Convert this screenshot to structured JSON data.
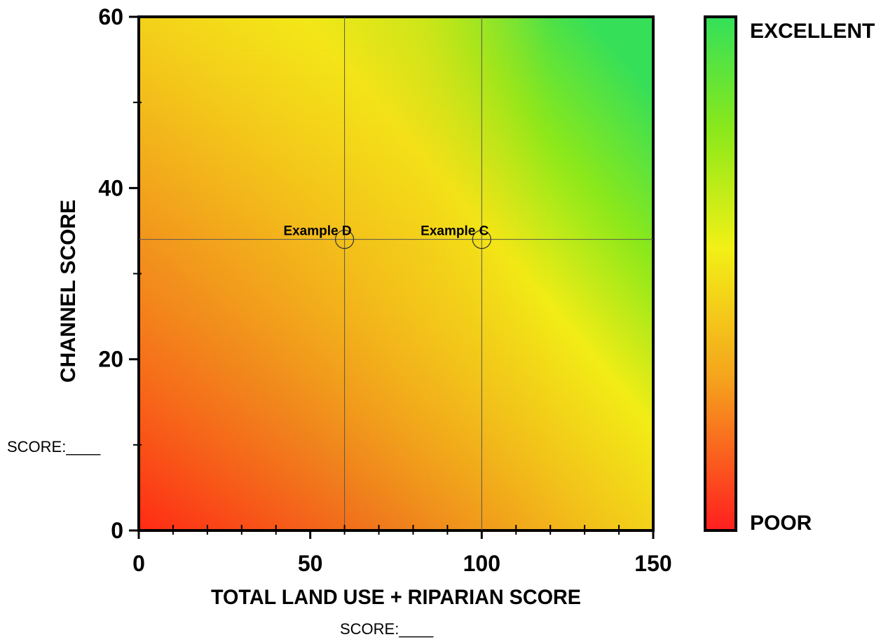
{
  "chart_data": {
    "type": "heatmap",
    "title": "",
    "xlabel": "TOTAL LAND USE + RIPARIAN SCORE",
    "ylabel": "CHANNEL SCORE",
    "xlim": [
      0,
      150
    ],
    "ylim": [
      0,
      60
    ],
    "x_ticks": [
      0,
      50,
      100,
      150
    ],
    "y_ticks": [
      0,
      20,
      40,
      60
    ],
    "x_minor_step": 10,
    "y_minor_step": 10,
    "colorbar": {
      "top_label": "EXCELLENT",
      "bottom_label": "POOR",
      "colors": [
        "#ff1f1f",
        "#f5a51d",
        "#f2f016",
        "#8be81a",
        "#33e05a"
      ]
    },
    "grid": false,
    "reference_lines": {
      "x": [
        60,
        100
      ],
      "y": [
        34
      ]
    },
    "points": [
      {
        "label": "Example D",
        "x": 60,
        "y": 34
      },
      {
        "label": "Example C",
        "x": 100,
        "y": 34
      }
    ],
    "score_labels": {
      "y_axis": "SCORE:____",
      "x_axis": "SCORE:____"
    }
  }
}
